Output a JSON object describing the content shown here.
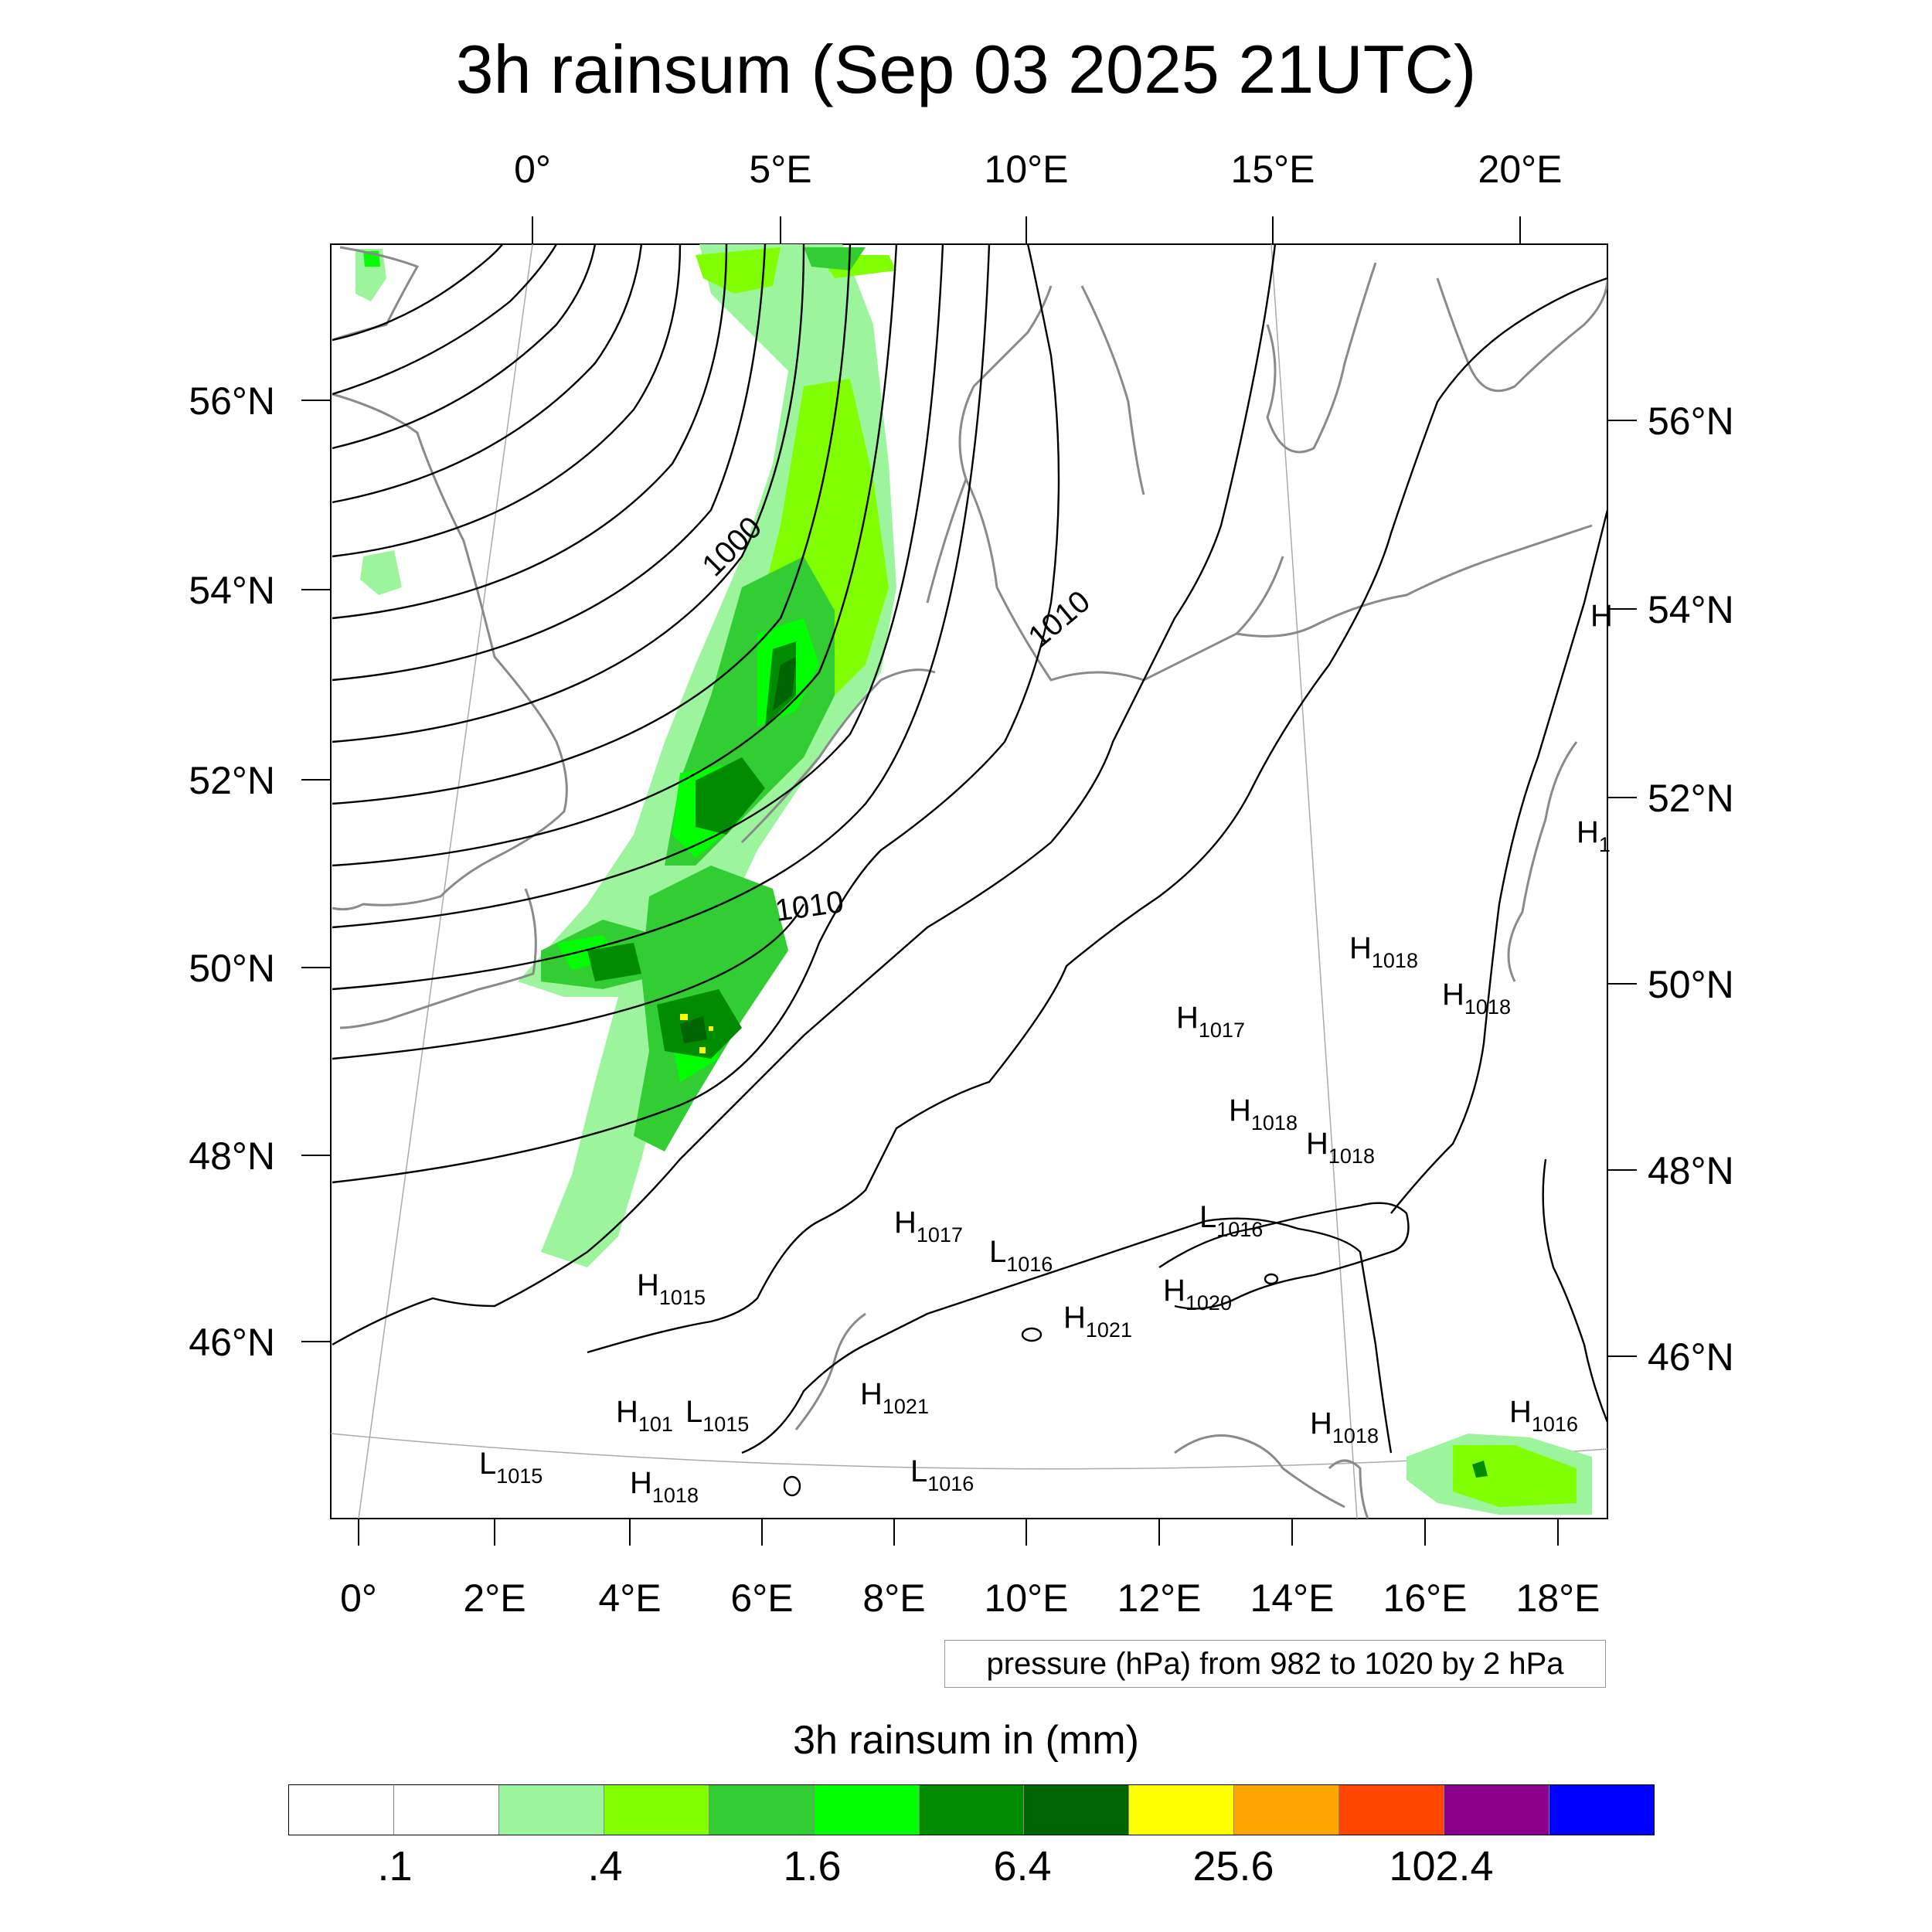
{
  "title": "3h rainsum (Sep 03 2025 21UTC)",
  "map": {
    "top_lon_labels": [
      "0°",
      "5°E",
      "10°E",
      "15°E",
      "20°E"
    ],
    "bottom_lon_labels": [
      "0°",
      "2°E",
      "4°E",
      "6°E",
      "8°E",
      "10°E",
      "12°E",
      "14°E",
      "16°E",
      "18°E"
    ],
    "left_lat_labels": [
      "56°N",
      "54°N",
      "52°N",
      "50°N",
      "48°N",
      "46°N"
    ],
    "right_lat_labels": [
      "56°N",
      "54°N",
      "52°N",
      "50°N",
      "48°N",
      "46°N"
    ],
    "contour_labels": [
      "1000",
      "1010",
      "1010"
    ],
    "pressure_centers": [
      {
        "type": "H",
        "value": "1018"
      },
      {
        "type": "H",
        "value": "1018"
      },
      {
        "type": "H",
        "value": "1017"
      },
      {
        "type": "H",
        "value": "1018"
      },
      {
        "type": "H",
        "value": "1018"
      },
      {
        "type": "H",
        "value": "1017"
      },
      {
        "type": "L",
        "value": "1016"
      },
      {
        "type": "L",
        "value": "1016"
      },
      {
        "type": "H",
        "value": "1020"
      },
      {
        "type": "H",
        "value": "1015"
      },
      {
        "type": "H",
        "value": "1021"
      },
      {
        "type": "H",
        "value": "1021"
      },
      {
        "type": "H",
        "value": "101"
      },
      {
        "type": "L",
        "value": "1015"
      },
      {
        "type": "L",
        "value": "1015"
      },
      {
        "type": "H",
        "value": "1018"
      },
      {
        "type": "L",
        "value": "1016"
      },
      {
        "type": "H",
        "value": "1018"
      },
      {
        "type": "H",
        "value": "1016"
      },
      {
        "type": "H",
        "value": ""
      },
      {
        "type": "H",
        "value": "1"
      }
    ]
  },
  "info_box": "pressure (hPa) from 982 to 1020 by 2 hPa",
  "colorbar": {
    "title": "3h rainsum in (mm)",
    "colors": [
      "#ffffff",
      "#ffffff",
      "#9cf59c",
      "#80ff00",
      "#32cd32",
      "#00ff00",
      "#008b00",
      "#006400",
      "#ffff00",
      "#ffa500",
      "#ff4500",
      "#8b008b",
      "#0000ff"
    ],
    "labels": [
      ".1",
      ".4",
      "1.6",
      "6.4",
      "25.6",
      "102.4"
    ]
  }
}
